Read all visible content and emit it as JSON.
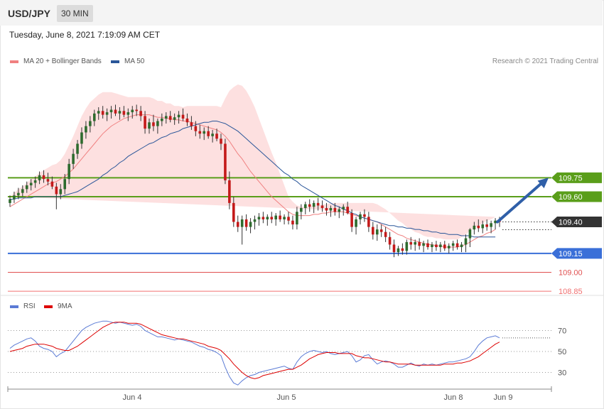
{
  "header": {
    "symbol": "USD/JPY",
    "timeframe": "30 MIN",
    "timestamp": "Tuesday, June 8, 2021 7:19:09 AM CET"
  },
  "legend": {
    "ma_bb": "MA 20 + Bollinger Bands",
    "ma_bb_color": "#f08080",
    "ma50": "MA 50",
    "ma50_color": "#2a5699",
    "credit": "Research © 2021 Trading Central"
  },
  "rsi_legend": {
    "rsi": "RSI",
    "rsi_color": "#5b7bd5",
    "ma9": "9MA",
    "ma9_color": "#dd0000"
  },
  "chart_data": {
    "type": "candlestick",
    "price_ylim": [
      108.8,
      110.8
    ],
    "x_tick_labels": [
      "Jun 4",
      "Jun 5",
      "Jun 8",
      "Jun 9"
    ],
    "candles": [
      [
        109.55,
        109.61,
        109.52,
        109.58
      ],
      [
        109.58,
        109.64,
        109.55,
        109.61
      ],
      [
        109.61,
        109.67,
        109.58,
        109.63
      ],
      [
        109.63,
        109.69,
        109.6,
        109.66
      ],
      [
        109.66,
        109.72,
        109.63,
        109.69
      ],
      [
        109.69,
        109.74,
        109.65,
        109.71
      ],
      [
        109.71,
        109.76,
        109.67,
        109.73
      ],
      [
        109.73,
        109.8,
        109.7,
        109.77
      ],
      [
        109.77,
        109.81,
        109.71,
        109.74
      ],
      [
        109.74,
        109.79,
        109.69,
        109.72
      ],
      [
        109.72,
        109.76,
        109.66,
        109.68
      ],
      [
        109.68,
        109.71,
        109.5,
        109.62
      ],
      [
        109.62,
        109.7,
        109.58,
        109.66
      ],
      [
        109.66,
        109.78,
        109.62,
        109.74
      ],
      [
        109.74,
        109.9,
        109.7,
        109.86
      ],
      [
        109.86,
        109.98,
        109.82,
        109.94
      ],
      [
        109.94,
        110.05,
        109.9,
        110.02
      ],
      [
        110.02,
        110.15,
        109.98,
        110.11
      ],
      [
        110.11,
        110.2,
        110.06,
        110.16
      ],
      [
        110.16,
        110.24,
        110.11,
        110.2
      ],
      [
        110.2,
        110.29,
        110.16,
        110.26
      ],
      [
        110.26,
        110.31,
        110.21,
        110.28
      ],
      [
        110.28,
        110.32,
        110.22,
        110.25
      ],
      [
        110.25,
        110.3,
        110.2,
        110.27
      ],
      [
        110.27,
        110.32,
        110.22,
        110.29
      ],
      [
        110.29,
        110.33,
        110.24,
        110.26
      ],
      [
        110.26,
        110.31,
        110.21,
        110.28
      ],
      [
        110.28,
        110.32,
        110.23,
        110.25
      ],
      [
        110.25,
        110.3,
        110.2,
        110.27
      ],
      [
        110.27,
        110.32,
        110.22,
        110.29
      ],
      [
        110.29,
        110.33,
        110.24,
        110.28
      ],
      [
        110.28,
        110.32,
        110.2,
        110.24
      ],
      [
        110.24,
        110.28,
        110.1,
        110.14
      ],
      [
        110.14,
        110.22,
        110.1,
        110.19
      ],
      [
        110.19,
        110.25,
        110.12,
        110.16
      ],
      [
        110.16,
        110.22,
        110.1,
        110.2
      ],
      [
        110.2,
        110.26,
        110.16,
        110.22
      ],
      [
        110.22,
        110.27,
        110.18,
        110.24
      ],
      [
        110.24,
        110.28,
        110.19,
        110.21
      ],
      [
        110.21,
        110.26,
        110.17,
        110.23
      ],
      [
        110.23,
        110.28,
        110.18,
        110.25
      ],
      [
        110.25,
        110.3,
        110.2,
        110.22
      ],
      [
        110.22,
        110.26,
        110.16,
        110.19
      ],
      [
        110.19,
        110.24,
        110.13,
        110.16
      ],
      [
        110.16,
        110.2,
        110.08,
        110.12
      ],
      [
        110.12,
        110.17,
        110.06,
        110.1
      ],
      [
        110.1,
        110.15,
        110.05,
        110.12
      ],
      [
        110.12,
        110.16,
        110.06,
        110.08
      ],
      [
        110.08,
        110.13,
        110.03,
        110.1
      ],
      [
        110.1,
        110.14,
        110.04,
        110.06
      ],
      [
        110.06,
        110.1,
        109.97,
        110.02
      ],
      [
        110.02,
        110.06,
        109.7,
        109.73
      ],
      [
        109.73,
        109.8,
        109.5,
        109.55
      ],
      [
        109.55,
        109.6,
        109.36,
        109.4
      ],
      [
        109.4,
        109.45,
        109.32,
        109.36
      ],
      [
        109.36,
        109.45,
        109.22,
        109.42
      ],
      [
        109.42,
        109.46,
        109.33,
        109.36
      ],
      [
        109.36,
        109.43,
        109.31,
        109.4
      ],
      [
        109.4,
        109.45,
        109.34,
        109.42
      ],
      [
        109.42,
        109.47,
        109.37,
        109.44
      ],
      [
        109.44,
        109.48,
        109.39,
        109.42
      ],
      [
        109.42,
        109.46,
        109.37,
        109.44
      ],
      [
        109.44,
        109.48,
        109.39,
        109.42
      ],
      [
        109.42,
        109.47,
        109.37,
        109.45
      ],
      [
        109.45,
        109.49,
        109.4,
        109.42
      ],
      [
        109.42,
        109.46,
        109.38,
        109.44
      ],
      [
        109.44,
        109.48,
        109.38,
        109.41
      ],
      [
        109.41,
        109.45,
        109.34,
        109.38
      ],
      [
        109.38,
        109.52,
        109.34,
        109.48
      ],
      [
        109.48,
        109.54,
        109.42,
        109.51
      ],
      [
        109.51,
        109.56,
        109.46,
        109.54
      ],
      [
        109.54,
        109.58,
        109.48,
        109.52
      ],
      [
        109.52,
        109.57,
        109.47,
        109.55
      ],
      [
        109.55,
        109.59,
        109.49,
        109.53
      ],
      [
        109.53,
        109.57,
        109.48,
        109.51
      ],
      [
        109.51,
        109.55,
        109.45,
        109.49
      ],
      [
        109.49,
        109.53,
        109.44,
        109.51
      ],
      [
        109.51,
        109.55,
        109.45,
        109.48
      ],
      [
        109.48,
        109.52,
        109.43,
        109.5
      ],
      [
        109.5,
        109.54,
        109.45,
        109.52
      ],
      [
        109.52,
        109.56,
        109.46,
        109.47
      ],
      [
        109.47,
        109.5,
        109.32,
        109.36
      ],
      [
        109.36,
        109.44,
        109.3,
        109.42
      ],
      [
        109.42,
        109.48,
        109.38,
        109.46
      ],
      [
        109.46,
        109.5,
        109.4,
        109.44
      ],
      [
        109.44,
        109.48,
        109.32,
        109.36
      ],
      [
        109.36,
        109.4,
        109.26,
        109.3
      ],
      [
        109.3,
        109.38,
        109.25,
        109.34
      ],
      [
        109.34,
        109.38,
        109.28,
        109.32
      ],
      [
        109.32,
        109.36,
        109.24,
        109.28
      ],
      [
        109.28,
        109.32,
        109.18,
        109.22
      ],
      [
        109.22,
        109.26,
        109.12,
        109.16
      ],
      [
        109.16,
        109.21,
        109.13,
        109.19
      ],
      [
        109.19,
        109.23,
        109.14,
        109.17
      ],
      [
        109.17,
        109.26,
        109.14,
        109.24
      ],
      [
        109.24,
        109.28,
        109.18,
        109.22
      ],
      [
        109.22,
        109.26,
        109.17,
        109.24
      ],
      [
        109.24,
        109.27,
        109.18,
        109.21
      ],
      [
        109.21,
        109.25,
        109.16,
        109.23
      ],
      [
        109.23,
        109.26,
        109.18,
        109.2
      ],
      [
        109.2,
        109.24,
        109.16,
        109.22
      ],
      [
        109.22,
        109.25,
        109.17,
        109.2
      ],
      [
        109.2,
        109.24,
        109.16,
        109.22
      ],
      [
        109.22,
        109.25,
        109.17,
        109.19
      ],
      [
        109.19,
        109.23,
        109.15,
        109.21
      ],
      [
        109.21,
        109.25,
        109.17,
        109.23
      ],
      [
        109.23,
        109.26,
        109.18,
        109.2
      ],
      [
        109.2,
        109.24,
        109.16,
        109.22
      ],
      [
        109.22,
        109.3,
        109.16,
        109.27
      ],
      [
        109.27,
        109.35,
        109.2,
        109.34
      ],
      [
        109.34,
        109.4,
        109.3,
        109.37
      ],
      [
        109.37,
        109.42,
        109.32,
        109.35
      ],
      [
        109.35,
        109.41,
        109.31,
        109.38
      ],
      [
        109.38,
        109.42,
        109.33,
        109.36
      ],
      [
        109.36,
        109.41,
        109.31,
        109.39
      ],
      [
        109.39,
        109.43,
        109.34,
        109.41
      ],
      [
        109.41,
        109.44,
        109.36,
        109.4
      ]
    ],
    "ma20": [
      109.52,
      109.54,
      109.56,
      109.58,
      109.6,
      109.62,
      109.64,
      109.66,
      109.68,
      109.7,
      109.71,
      109.72,
      109.74,
      109.76,
      109.79,
      109.82,
      109.86,
      109.9,
      109.94,
      109.98,
      110.02,
      110.06,
      110.1,
      110.13,
      110.16,
      110.18,
      110.2,
      110.22,
      110.23,
      110.24,
      110.25,
      110.25,
      110.25,
      110.25,
      110.24,
      110.23,
      110.23,
      110.22,
      110.22,
      110.21,
      110.21,
      110.2,
      110.2,
      110.19,
      110.18,
      110.17,
      110.16,
      110.15,
      110.14,
      110.13,
      110.11,
      110.08,
      110.04,
      109.99,
      109.94,
      109.9,
      109.85,
      109.8,
      109.76,
      109.72,
      109.68,
      109.64,
      109.6,
      109.57,
      109.54,
      109.51,
      109.48,
      109.46,
      109.45,
      109.45,
      109.45,
      109.45,
      109.46,
      109.46,
      109.47,
      109.47,
      109.48,
      109.48,
      109.48,
      109.48,
      109.47,
      109.46,
      109.45,
      109.44,
      109.43,
      109.42,
      109.41,
      109.4,
      109.38,
      109.36,
      109.34,
      109.32,
      109.3,
      109.29,
      109.27,
      109.26,
      109.25,
      109.24,
      109.23,
      109.22,
      109.22,
      109.21,
      109.21,
      109.2,
      109.2,
      109.2,
      109.2,
      109.21,
      109.22,
      109.24,
      109.26,
      109.28,
      109.29,
      109.31,
      109.32,
      109.34
    ],
    "ma50": [
      109.58,
      109.58,
      109.59,
      109.59,
      109.59,
      109.59,
      109.6,
      109.6,
      109.6,
      109.6,
      109.6,
      109.6,
      109.6,
      109.61,
      109.62,
      109.63,
      109.64,
      109.66,
      109.68,
      109.7,
      109.72,
      109.74,
      109.77,
      109.79,
      109.82,
      109.84,
      109.87,
      109.89,
      109.92,
      109.94,
      109.96,
      109.98,
      110.0,
      110.02,
      110.03,
      110.05,
      110.07,
      110.08,
      110.1,
      110.11,
      110.12,
      110.14,
      110.15,
      110.16,
      110.17,
      110.18,
      110.19,
      110.19,
      110.2,
      110.2,
      110.19,
      110.18,
      110.16,
      110.14,
      110.12,
      110.09,
      110.06,
      110.03,
      110.0,
      109.97,
      109.94,
      109.91,
      109.88,
      109.85,
      109.82,
      109.79,
      109.77,
      109.74,
      109.72,
      109.69,
      109.67,
      109.65,
      109.63,
      109.61,
      109.59,
      109.57,
      109.55,
      109.53,
      109.52,
      109.5,
      109.49,
      109.47,
      109.46,
      109.44,
      109.43,
      109.42,
      109.41,
      109.4,
      109.39,
      109.38,
      109.37,
      109.37,
      109.36,
      109.36,
      109.35,
      109.35,
      109.34,
      109.34,
      109.33,
      109.33,
      109.32,
      109.32,
      109.31,
      109.31,
      109.3,
      109.3,
      109.3,
      109.29,
      109.29,
      109.29,
      109.28,
      109.28,
      109.28,
      109.28,
      109.28,
      109.28
    ],
    "bb_width": [
      0.08,
      0.09,
      0.1,
      0.1,
      0.11,
      0.12,
      0.12,
      0.13,
      0.13,
      0.13,
      0.14,
      0.14,
      0.15,
      0.18,
      0.22,
      0.26,
      0.3,
      0.34,
      0.36,
      0.37,
      0.36,
      0.35,
      0.33,
      0.3,
      0.27,
      0.24,
      0.21,
      0.18,
      0.16,
      0.15,
      0.14,
      0.14,
      0.14,
      0.14,
      0.14,
      0.13,
      0.13,
      0.12,
      0.12,
      0.11,
      0.11,
      0.11,
      0.12,
      0.13,
      0.14,
      0.15,
      0.16,
      0.17,
      0.18,
      0.19,
      0.2,
      0.3,
      0.4,
      0.48,
      0.55,
      0.58,
      0.59,
      0.58,
      0.55,
      0.5,
      0.45,
      0.4,
      0.35,
      0.3,
      0.24,
      0.18,
      0.12,
      0.1,
      0.08,
      0.07,
      0.07,
      0.07,
      0.07,
      0.07,
      0.07,
      0.07,
      0.07,
      0.07,
      0.07,
      0.07,
      0.08,
      0.09,
      0.1,
      0.11,
      0.12,
      0.13,
      0.14,
      0.14,
      0.14,
      0.14,
      0.13,
      0.12,
      0.11,
      0.1,
      0.09,
      0.08,
      0.07,
      0.07,
      0.06,
      0.06,
      0.06,
      0.06,
      0.06,
      0.06,
      0.06,
      0.06,
      0.06,
      0.07,
      0.08,
      0.09,
      0.09,
      0.09,
      0.1,
      0.1,
      0.1,
      0.1
    ],
    "levels": [
      {
        "label": "109.75",
        "value": 109.75,
        "color": "#5a9e1a",
        "style": "solid",
        "badge": true
      },
      {
        "label": "109.60",
        "value": 109.6,
        "color": "#5a9e1a",
        "style": "solid",
        "badge": true
      },
      {
        "label": "109.40",
        "value": 109.4,
        "color": "#333333",
        "style": "dotted",
        "badge": true
      },
      {
        "label": "109.15",
        "value": 109.15,
        "color": "#3a6fd8",
        "style": "solid",
        "badge": true
      },
      {
        "label": "109.00",
        "value": 109.0,
        "color": "#e05050",
        "style": "solid",
        "badge": false
      },
      {
        "label": "108.85",
        "value": 108.85,
        "color": "#f07070",
        "style": "solid",
        "badge": false
      }
    ],
    "target_arrow": {
      "from_bar": 115,
      "from_value": 109.4,
      "to_value": 109.75
    },
    "rsi_ylim": [
      10,
      90
    ],
    "rsi_ticks": [
      70,
      50,
      30
    ],
    "rsi": [
      53,
      56,
      58,
      60,
      62,
      63,
      60,
      55,
      53,
      52,
      50,
      45,
      48,
      50,
      55,
      60,
      65,
      70,
      73,
      75,
      77,
      78,
      79,
      79,
      78,
      77,
      78,
      77,
      76,
      75,
      76,
      74,
      70,
      68,
      66,
      64,
      64,
      63,
      62,
      61,
      62,
      61,
      60,
      59,
      57,
      55,
      54,
      52,
      51,
      49,
      46,
      35,
      26,
      20,
      18,
      22,
      25,
      27,
      28,
      30,
      31,
      32,
      33,
      34,
      35,
      36,
      34,
      33,
      40,
      45,
      48,
      50,
      51,
      50,
      49,
      50,
      48,
      47,
      48,
      49,
      50,
      46,
      40,
      42,
      46,
      47,
      42,
      38,
      40,
      41,
      40,
      38,
      35,
      35,
      37,
      39,
      37,
      36,
      38,
      37,
      38,
      37,
      38,
      39,
      40,
      40,
      41,
      42,
      43,
      45,
      50,
      56,
      60,
      63,
      64,
      65,
      63
    ],
    "rsi9": [
      50,
      51,
      52,
      53,
      55,
      56,
      57,
      57,
      57,
      56,
      55,
      53,
      52,
      51,
      51,
      53,
      55,
      58,
      61,
      64,
      67,
      70,
      73,
      75,
      77,
      78,
      78,
      78,
      77,
      77,
      77,
      76,
      74,
      72,
      70,
      68,
      66,
      65,
      64,
      63,
      62,
      62,
      61,
      60,
      59,
      58,
      57,
      55,
      54,
      53,
      51,
      47,
      43,
      38,
      34,
      30,
      27,
      25,
      24,
      25,
      27,
      28,
      29,
      30,
      31,
      32,
      33,
      33,
      35,
      37,
      40,
      43,
      45,
      47,
      48,
      49,
      49,
      49,
      48,
      48,
      48,
      48,
      46,
      45,
      44,
      44,
      43,
      42,
      41,
      40,
      40,
      39,
      38,
      38,
      38,
      38,
      37,
      37,
      37,
      37,
      37,
      37,
      37,
      38,
      38,
      38,
      39,
      39,
      40,
      41,
      43,
      45,
      48,
      51,
      54,
      57,
      59
    ]
  }
}
